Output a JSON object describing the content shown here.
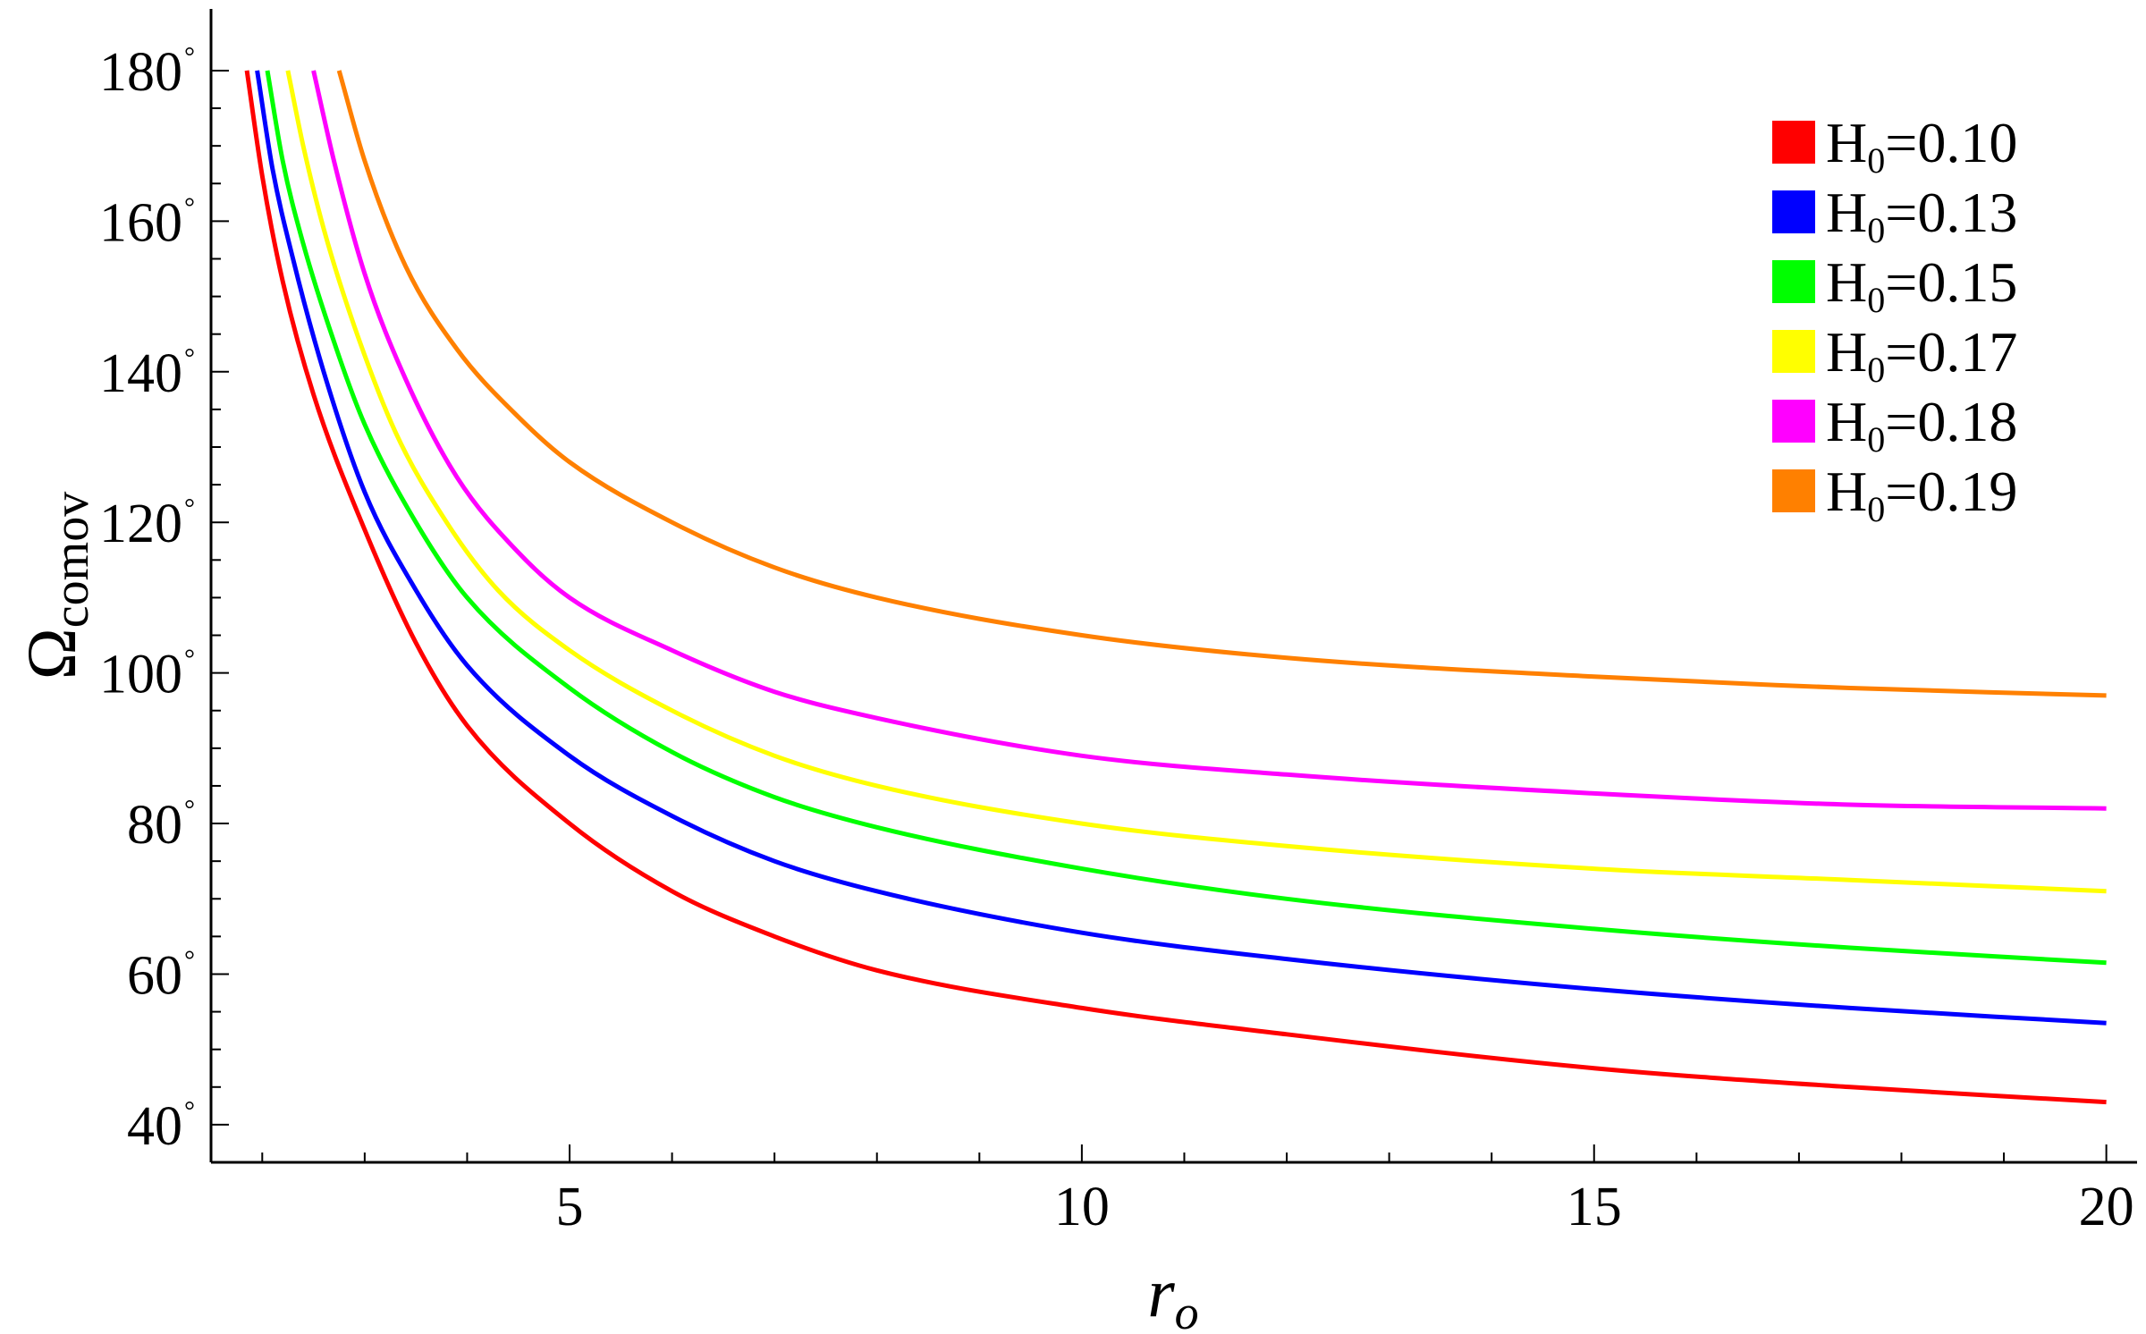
{
  "chart_data": {
    "type": "line",
    "xlabel": {
      "main": "r",
      "sub": "o"
    },
    "ylabel": {
      "main": "Ω",
      "sub": "comov"
    },
    "xlim": [
      1.5,
      20.3
    ],
    "ylim": [
      35,
      187
    ],
    "x_ticks": [
      {
        "value": 5,
        "label": "5"
      },
      {
        "value": 10,
        "label": "10"
      },
      {
        "value": 15,
        "label": "15"
      },
      {
        "value": 20,
        "label": "20"
      }
    ],
    "y_ticks": [
      {
        "value": 40,
        "label": "40"
      },
      {
        "value": 60,
        "label": "60"
      },
      {
        "value": 80,
        "label": "80"
      },
      {
        "value": 100,
        "label": "100"
      },
      {
        "value": 120,
        "label": "120"
      },
      {
        "value": 140,
        "label": "140"
      },
      {
        "value": 160,
        "label": "160"
      },
      {
        "value": 180,
        "label": "180"
      }
    ],
    "y_tick_suffix": "°",
    "grid": false,
    "legend_position": "top-right",
    "legend_prefix": {
      "main": "H",
      "sub": "0"
    },
    "series": [
      {
        "name": "=0.10",
        "color": "#ff0000",
        "x": [
          1.85,
          2.0,
          2.2,
          2.5,
          3.0,
          3.5,
          4.0,
          5.0,
          6.0,
          7.0,
          8.0,
          10.0,
          12.0,
          15.0,
          17.5,
          20.0
        ],
        "y": [
          180,
          166,
          152,
          137,
          119,
          104,
          93,
          80,
          71,
          65,
          60.5,
          55.5,
          52,
          47.5,
          45,
          43
        ]
      },
      {
        "name": "=0.13",
        "color": "#0000ff",
        "x": [
          1.95,
          2.1,
          2.3,
          2.6,
          3.0,
          3.5,
          4.0,
          5.0,
          6.0,
          7.0,
          8.0,
          10.0,
          12.0,
          15.0,
          17.5,
          20.0
        ],
        "y": [
          180,
          167,
          155,
          140,
          124,
          111,
          101,
          89,
          81,
          75,
          71,
          65.5,
          62,
          58,
          55.5,
          53.5
        ]
      },
      {
        "name": "=0.15",
        "color": "#00ff00",
        "x": [
          2.05,
          2.2,
          2.4,
          2.7,
          3.0,
          3.5,
          4.0,
          5.0,
          6.0,
          7.0,
          8.0,
          10.0,
          12.0,
          15.0,
          17.5,
          20.0
        ],
        "y": [
          180,
          168,
          157,
          144,
          133,
          120,
          110,
          98,
          89.5,
          83.5,
          79.5,
          74,
          70,
          66,
          63.5,
          61.5
        ]
      },
      {
        "name": "=0.17",
        "color": "#ffff00",
        "x": [
          2.25,
          2.4,
          2.6,
          2.9,
          3.3,
          3.8,
          4.3,
          5.0,
          6.0,
          7.0,
          8.0,
          10.0,
          12.0,
          15.0,
          17.5,
          20.0
        ],
        "y": [
          180,
          170,
          159,
          146,
          132,
          120,
          111,
          103,
          95,
          89,
          85,
          80,
          77,
          74,
          72.5,
          71
        ]
      },
      {
        "name": "=0.18",
        "color": "#ff00ff",
        "x": [
          2.5,
          2.7,
          3.0,
          3.4,
          3.9,
          4.5,
          5.0,
          6.0,
          7.0,
          8.0,
          10.0,
          12.0,
          15.0,
          17.5,
          20.0
        ],
        "y": [
          180,
          168,
          153,
          139,
          126,
          116,
          110,
          103,
          97.5,
          94,
          89,
          86.5,
          84,
          82.5,
          82
        ]
      },
      {
        "name": "=0.19",
        "color": "#ff8000",
        "x": [
          2.75,
          3.0,
          3.4,
          3.9,
          4.5,
          5.0,
          6.0,
          7.0,
          8.0,
          10.0,
          12.0,
          15.0,
          17.5,
          20.0
        ],
        "y": [
          180,
          168,
          154,
          143,
          134,
          128,
          120,
          114,
          110,
          105,
          102,
          99.5,
          98,
          97
        ]
      }
    ]
  }
}
